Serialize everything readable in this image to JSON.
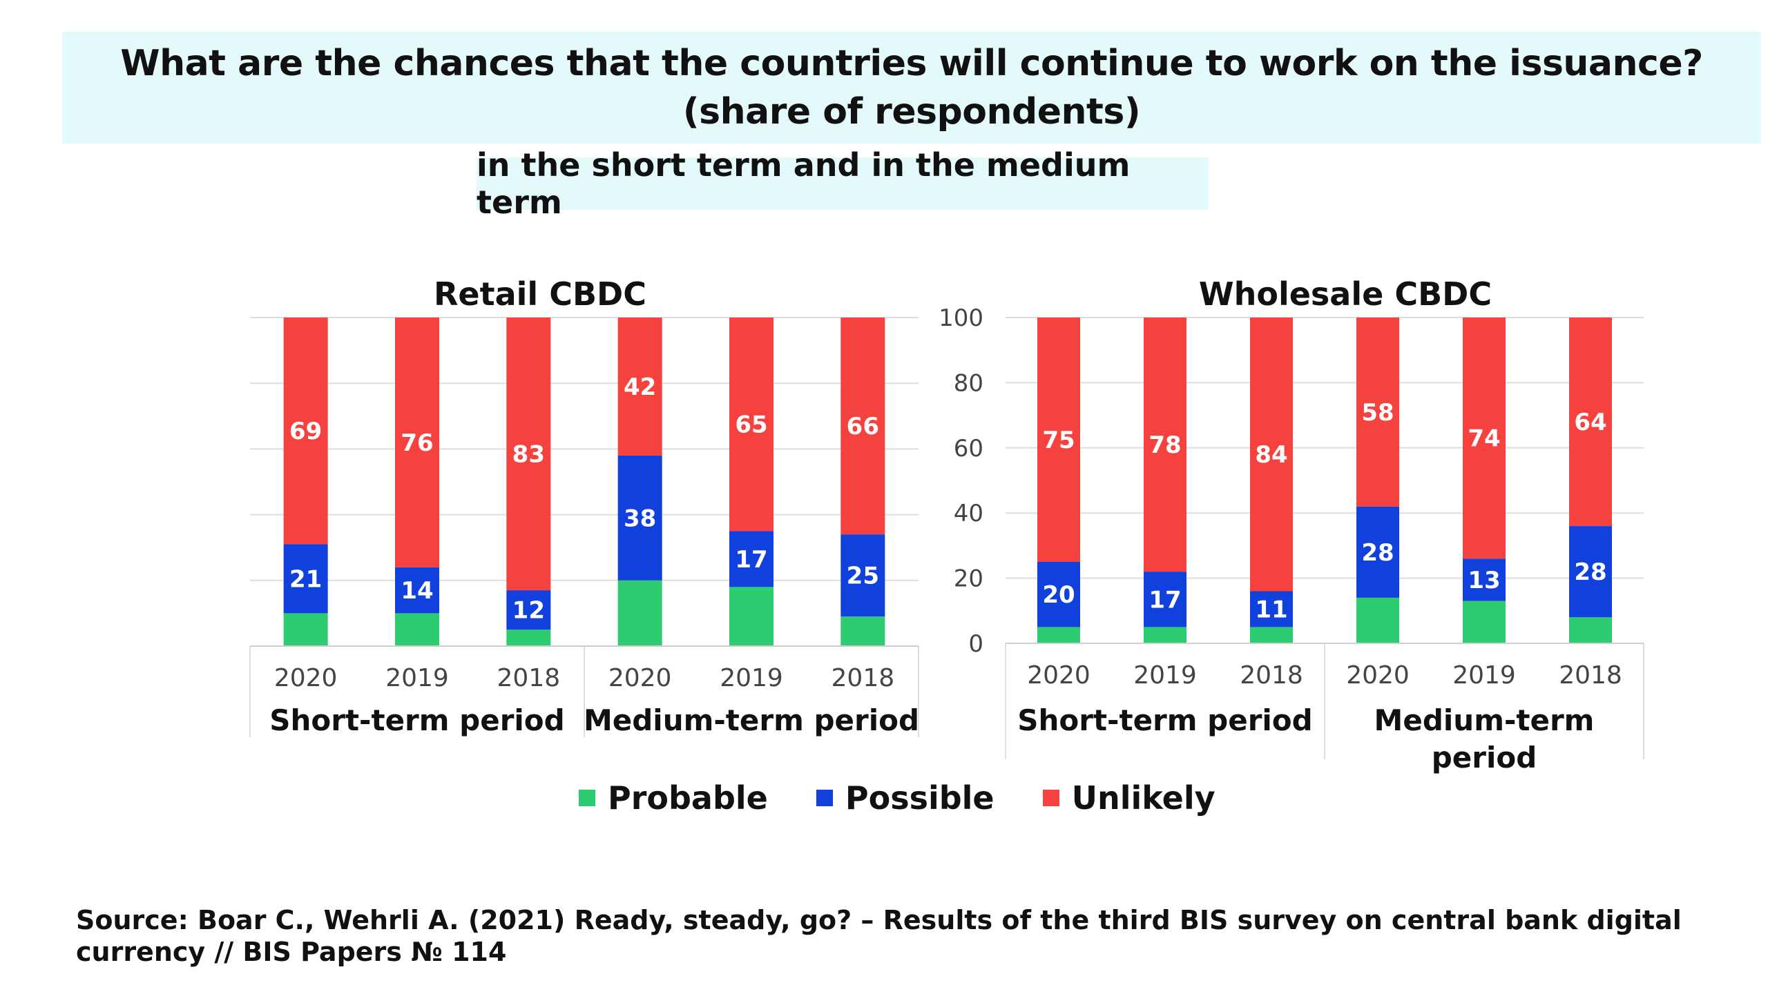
{
  "header": {
    "title_line1": "What are the chances that the countries will continue to work on the issuance?",
    "title_line2": "(share of respondents)",
    "subtitle": "in the short term and in the medium term"
  },
  "colors": {
    "probable": "#2ecc71",
    "possible": "#1141dd",
    "unlikely": "#f5423f",
    "grid": "#dddddd",
    "title_band": "#e4f9fa"
  },
  "legend": {
    "probable": "Probable",
    "possible": "Possible",
    "unlikely": "Unlikely"
  },
  "source": {
    "line1": "Source: Boar C., Wehrli A. (2021)  Ready, steady, go? – Results of the third BIS survey on central bank digital",
    "line2": "currency // BIS Papers № 114"
  },
  "chart_data": [
    {
      "type": "bar",
      "stacked": true,
      "title": "Retail CBDC",
      "categories": [
        "2020",
        "2019",
        "2018",
        "2020",
        "2019",
        "2018"
      ],
      "groups": [
        {
          "label": "Short-term period",
          "span": 3
        },
        {
          "label": "Medium-term period",
          "span": 3
        }
      ],
      "ylim": [
        0,
        100
      ],
      "yticks_visible": false,
      "series": [
        {
          "name": "Probable",
          "values": [
            10,
            10,
            5,
            20,
            18,
            9
          ],
          "labels_shown": false
        },
        {
          "name": "Possible",
          "values": [
            21,
            14,
            12,
            38,
            17,
            25
          ]
        },
        {
          "name": "Unlikely",
          "values": [
            69,
            76,
            83,
            42,
            65,
            66
          ]
        }
      ]
    },
    {
      "type": "bar",
      "stacked": true,
      "title": "Wholesale CBDC",
      "categories": [
        "2020",
        "2019",
        "2018",
        "2020",
        "2019",
        "2018"
      ],
      "groups": [
        {
          "label": "Short-term period",
          "span": 3
        },
        {
          "label": "Medium-term period",
          "span": 3
        }
      ],
      "ylim": [
        0,
        100
      ],
      "yticks": [
        0,
        20,
        40,
        60,
        80,
        100
      ],
      "series": [
        {
          "name": "Probable",
          "values": [
            5,
            5,
            5,
            14,
            13,
            8
          ],
          "labels_shown": false
        },
        {
          "name": "Possible",
          "values": [
            20,
            17,
            11,
            28,
            13,
            28
          ]
        },
        {
          "name": "Unlikely",
          "values": [
            75,
            78,
            84,
            58,
            74,
            64
          ]
        }
      ]
    }
  ]
}
